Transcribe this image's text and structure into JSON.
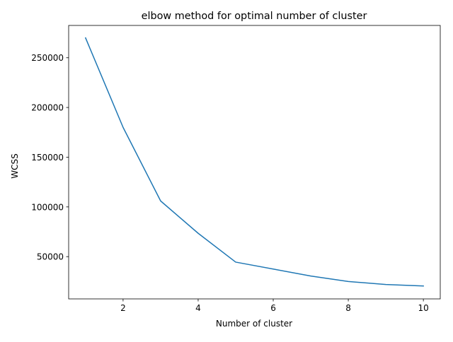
{
  "chart_data": {
    "type": "line",
    "title": "elbow method for optimal number of cluster",
    "xlabel": "Number of cluster",
    "ylabel": "WCSS",
    "xlim": [
      0.55,
      10.45
    ],
    "ylim": [
      7500,
      282500
    ],
    "xticks": [
      2,
      4,
      6,
      8,
      10
    ],
    "xtick_labels": [
      "2",
      "4",
      "6",
      "8",
      "10"
    ],
    "yticks": [
      50000,
      100000,
      150000,
      200000,
      250000
    ],
    "ytick_labels": [
      "50000",
      "100000",
      "150000",
      "200000",
      "250000"
    ],
    "grid": false,
    "series": [
      {
        "color": "#1f77b4",
        "x": [
          1,
          2,
          3,
          4,
          5,
          6,
          7,
          8,
          9,
          10
        ],
        "y": [
          270000,
          180000,
          106000,
          73500,
          44500,
          37500,
          30500,
          25000,
          22000,
          20500
        ]
      }
    ]
  }
}
